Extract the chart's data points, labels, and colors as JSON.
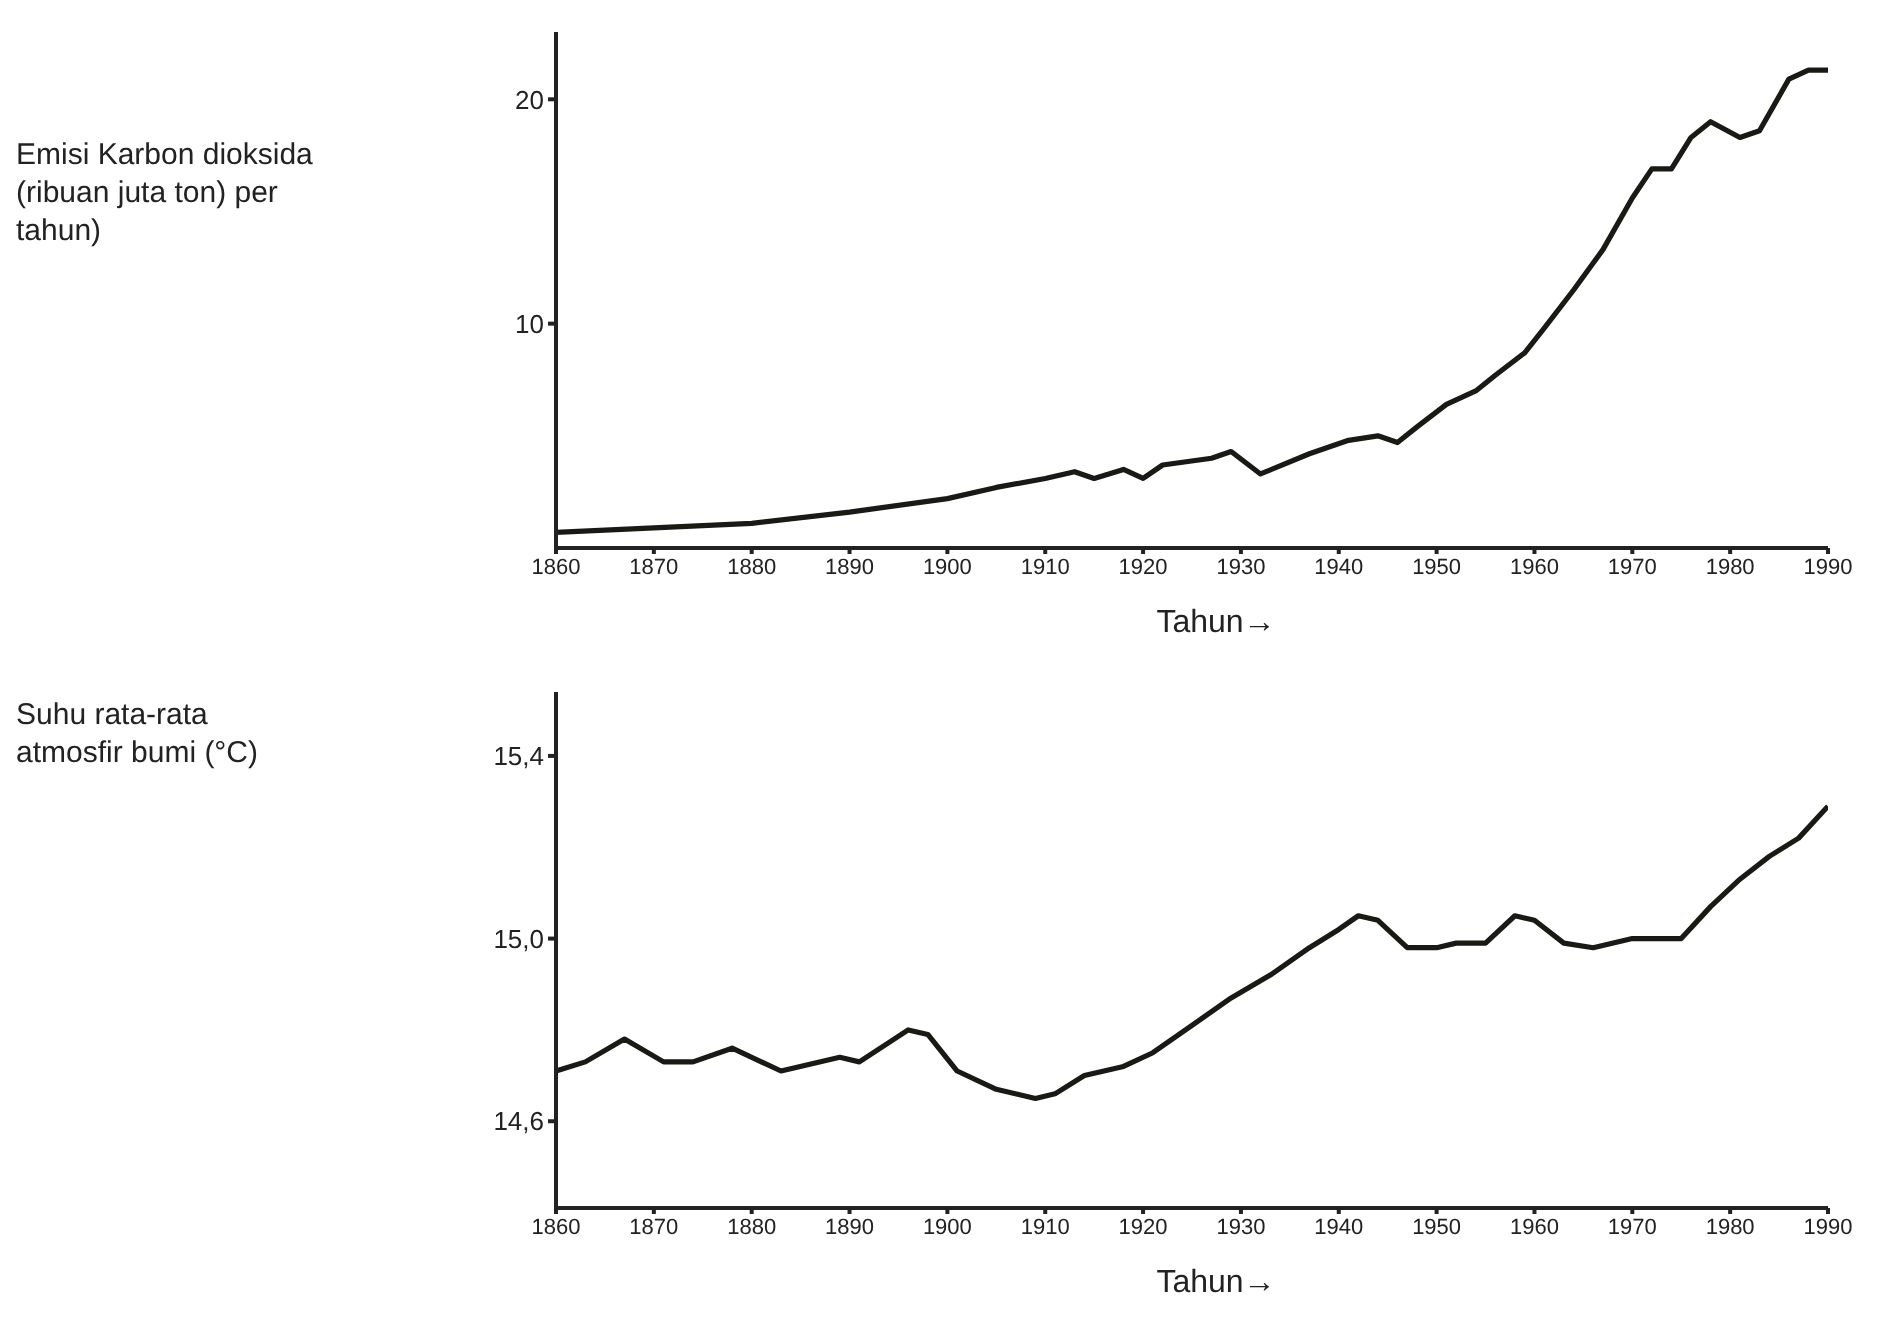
{
  "chart_data": [
    {
      "type": "line",
      "ylabel": "Emisi Karbon dioksida (ribuan juta ton) per tahun)",
      "xlabel": "Tahun→",
      "xlim": [
        1860,
        1990
      ],
      "xticks": [
        1860,
        1870,
        1880,
        1890,
        1900,
        1910,
        1920,
        1930,
        1940,
        1950,
        1960,
        1970,
        1980,
        1990
      ],
      "ylim": [
        0,
        23
      ],
      "yticks": [
        10,
        20
      ],
      "grid": false,
      "legend": false,
      "marker": "none",
      "line_style": "solid",
      "x": [
        1860,
        1870,
        1880,
        1890,
        1900,
        1905,
        1910,
        1913,
        1915,
        1918,
        1920,
        1922,
        1927,
        1929,
        1932,
        1937,
        1941,
        1944,
        1946,
        1948,
        1951,
        1954,
        1956,
        1959,
        1961,
        1964,
        1967,
        1970,
        1972,
        1974,
        1976,
        1978,
        1981,
        1983,
        1986,
        1988,
        1990
      ],
      "series": [
        {
          "color": "#1a1a14",
          "values": [
            0.7,
            0.9,
            1.1,
            1.6,
            2.2,
            2.7,
            3.1,
            3.4,
            3.1,
            3.5,
            3.1,
            3.7,
            4.0,
            4.3,
            3.3,
            4.2,
            4.8,
            5.0,
            4.7,
            5.4,
            6.4,
            7.0,
            7.7,
            8.7,
            9.8,
            11.5,
            13.3,
            15.6,
            16.9,
            16.9,
            18.3,
            19.0,
            18.3,
            18.6,
            20.9,
            21.3,
            21.3
          ]
        }
      ]
    },
    {
      "type": "line",
      "ylabel": "Suhu rata-rata atmosfir bumi (°C)",
      "xlabel": "Tahun→",
      "xlim": [
        1860,
        1990
      ],
      "xticks": [
        1860,
        1870,
        1880,
        1890,
        1900,
        1910,
        1920,
        1930,
        1940,
        1950,
        1960,
        1970,
        1980,
        1990
      ],
      "ylim": [
        14.41,
        15.54
      ],
      "yticks": [
        {
          "value": 14.6,
          "label": "14,6"
        },
        {
          "value": 15.0,
          "label": "15,0"
        },
        {
          "value": 15.4,
          "label": "15,4"
        }
      ],
      "grid": false,
      "legend": false,
      "marker": "none",
      "line_style": "solid",
      "x": [
        1860,
        1863,
        1867,
        1871,
        1874,
        1878,
        1883,
        1889,
        1891,
        1896,
        1898,
        1901,
        1905,
        1909,
        1911,
        1914,
        1918,
        1921,
        1925,
        1929,
        1933,
        1937,
        1940,
        1942,
        1944,
        1947,
        1950,
        1952,
        1955,
        1958,
        1960,
        1963,
        1966,
        1970,
        1975,
        1978,
        1981,
        1984,
        1987,
        1990
      ],
      "series": [
        {
          "color": "#1a1a14",
          "values": [
            14.71,
            14.73,
            14.78,
            14.73,
            14.73,
            14.76,
            14.71,
            14.74,
            14.73,
            14.8,
            14.79,
            14.71,
            14.67,
            14.65,
            14.66,
            14.7,
            14.72,
            14.75,
            14.81,
            14.87,
            14.92,
            14.98,
            15.02,
            15.05,
            15.04,
            14.98,
            14.98,
            14.99,
            14.99,
            15.05,
            15.04,
            14.99,
            14.98,
            15.0,
            15.0,
            15.07,
            15.13,
            15.18,
            15.22,
            15.29
          ]
        }
      ]
    }
  ]
}
